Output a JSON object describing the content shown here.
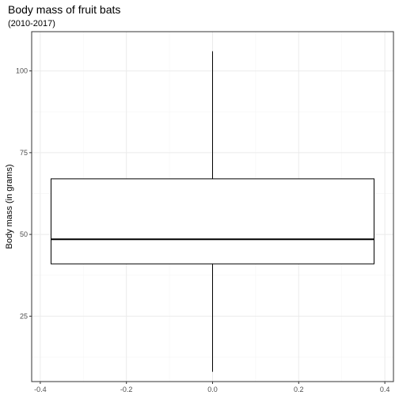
{
  "chart_data": {
    "type": "boxplot",
    "title": "Body mass of fruit bats",
    "subtitle": "(2010-2017)",
    "xlabel": "",
    "ylabel": "Body mass (in grams)",
    "x_ticks": [
      -0.4,
      -0.2,
      0.0,
      0.2,
      0.4
    ],
    "x_tick_labels": [
      "-0.4",
      "-0.2",
      "0.0",
      "0.2",
      "0.4"
    ],
    "y_ticks": [
      25,
      50,
      75,
      100
    ],
    "y_tick_labels": [
      "25",
      "50",
      "75",
      "100"
    ],
    "xlim": [
      -0.42,
      0.42
    ],
    "ylim": [
      5,
      112
    ],
    "box": {
      "x_center": 0.0,
      "width": 0.75,
      "min": 8,
      "q1": 41,
      "median": 48.5,
      "q3": 67,
      "max": 106
    },
    "grid": true,
    "colors": {
      "panel_border": "#333333",
      "grid_major": "#ebebeb",
      "grid_minor": "#f5f5f5",
      "box_line": "#000000"
    }
  }
}
